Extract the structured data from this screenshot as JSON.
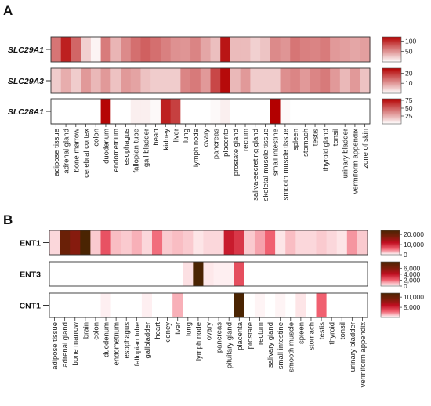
{
  "chart_data": [
    {
      "panel_label": "A",
      "type": "heatmap",
      "categories": [
        "adipose tissue",
        "adrenal gland",
        "bone marrow",
        "cerebral cortex",
        "colon",
        "duodenum",
        "endometrium",
        "esophagus",
        "fallopian tube",
        "gall bladder",
        "heart",
        "kidney",
        "liver",
        "lung",
        "lymph node",
        "ovary",
        "pancreas",
        "placenta",
        "prostate gland",
        "rectum",
        "saliva-secreting gland",
        "skeletal muscle tissue",
        "small intestine",
        "smooth muscle tissue",
        "spleen",
        "stomach",
        "testis",
        "thyroid gland",
        "tonsil",
        "urinary bladder",
        "vermiform appendix",
        "zone of skin"
      ],
      "color_low": "#ffffff",
      "color_high": "#b30000",
      "series": [
        {
          "name": "SLC29A1",
          "values": [
            65,
            105,
            72,
            22,
            5,
            62,
            35,
            55,
            68,
            75,
            68,
            60,
            52,
            50,
            58,
            42,
            30,
            110,
            32,
            32,
            22,
            28,
            55,
            50,
            65,
            60,
            58,
            62,
            48,
            45,
            42,
            45
          ],
          "colorbar": {
            "ticks": [
              50,
              100
            ],
            "max": 120
          }
        },
        {
          "name": "SLC29A3",
          "values": [
            5,
            8,
            5,
            10,
            7,
            10,
            6,
            10,
            9,
            6,
            5,
            5,
            5,
            12,
            13,
            10,
            18,
            24,
            7,
            10,
            5,
            5,
            5,
            11,
            12,
            10,
            12,
            13,
            10,
            7,
            10,
            6
          ],
          "colorbar": {
            "ticks": [
              10,
              20
            ],
            "max": 25
          }
        },
        {
          "name": "SLC28A1",
          "values": [
            0,
            0,
            0,
            0,
            0,
            78,
            0,
            0,
            5,
            5,
            2,
            70,
            60,
            0,
            0,
            0,
            2,
            5,
            0,
            0,
            0,
            0,
            80,
            2,
            0,
            0,
            0,
            0,
            0,
            0,
            0,
            0
          ],
          "colorbar": {
            "ticks": [
              25,
              50,
              75
            ],
            "max": 80
          }
        }
      ]
    },
    {
      "panel_label": "B",
      "type": "heatmap",
      "categories": [
        "adipose tissue",
        "adrenal gland",
        "bone marrow",
        "brain",
        "colon",
        "duodenum",
        "endometrium",
        "esophagus",
        "fallopian tube",
        "gallbladder",
        "heart",
        "kidney",
        "liver",
        "lung",
        "lymph node",
        "ovary",
        "pancreas",
        "pituitary gland",
        "placenta",
        "prostate",
        "rectum",
        "salivary gland",
        "small intestine",
        "smooth muscle",
        "spleen",
        "stomach",
        "testis",
        "thyroid",
        "tonsil",
        "urinary bladder",
        "vermiform appendix"
      ],
      "colors": [
        "#ffffff",
        "#f06070",
        "#c00d20",
        "#7a1e0a",
        "#4a2402"
      ],
      "series": [
        {
          "name": "ENT1",
          "values": [
            1500,
            20000,
            17000,
            24000,
            2000,
            7000,
            2500,
            2000,
            3000,
            1500,
            5500,
            2000,
            2500,
            2000,
            1000,
            1500,
            1500,
            11000,
            9000,
            2000,
            3500,
            6000,
            1000,
            2500,
            1500,
            1500,
            2000,
            1500,
            1000,
            4000,
            2000
          ],
          "colorbar": {
            "ticks": [
              "0",
              "10,000",
              "20,000"
            ],
            "max": 24000
          }
        },
        {
          "name": "ENT3",
          "values": [
            0,
            0,
            0,
            0,
            0,
            0,
            0,
            0,
            0,
            0,
            0,
            0,
            0,
            400,
            8200,
            300,
            200,
            200,
            2500,
            0,
            0,
            0,
            0,
            0,
            0,
            0,
            0,
            0,
            0,
            0,
            0
          ],
          "colorbar": {
            "ticks": [
              "0",
              "2,000",
              "4,000",
              "6,000"
            ],
            "max": 8200
          }
        },
        {
          "name": "CNT1",
          "values": [
            0,
            0,
            0,
            0,
            0,
            300,
            0,
            0,
            0,
            300,
            0,
            0,
            1500,
            0,
            0,
            0,
            0,
            0,
            12000,
            0,
            200,
            0,
            200,
            0,
            500,
            0,
            3000,
            0,
            0,
            0,
            0
          ],
          "colorbar": {
            "ticks": [
              "5,000",
              "10,000"
            ],
            "max": 12000
          }
        }
      ]
    }
  ]
}
